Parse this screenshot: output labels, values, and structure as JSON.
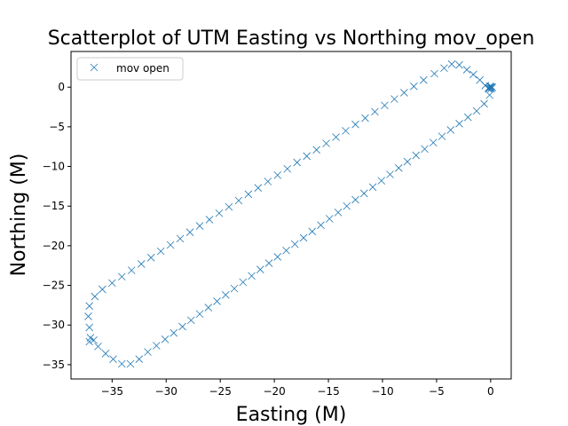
{
  "chart_data": {
    "type": "scatter",
    "title": "Scatterplot of UTM Easting vs Northing mov_open",
    "xlabel": "Easting (M)",
    "ylabel": "Northing (M)",
    "xlim": [
      -38.8,
      1.9
    ],
    "ylim": [
      -36.8,
      4.5
    ],
    "xticks": [
      -35,
      -30,
      -25,
      -20,
      -15,
      -10,
      -5,
      0
    ],
    "yticks": [
      -35,
      -30,
      -25,
      -20,
      -15,
      -10,
      -5,
      0
    ],
    "xtick_labels": [
      "−35",
      "−30",
      "−25",
      "−20",
      "−15",
      "−10",
      "−5",
      "0"
    ],
    "ytick_labels": [
      "−35",
      "−30",
      "−25",
      "−20",
      "−15",
      "−10",
      "−5",
      "0"
    ],
    "grid": false,
    "legend": {
      "position": "upper-left",
      "entries": [
        "mov open"
      ]
    },
    "marker": "x",
    "color": "#1f77b4",
    "series": [
      {
        "name": "mov open",
        "points": [
          [
            0,
            0
          ],
          [
            -0.1,
            -0.1
          ],
          [
            0.1,
            0.05
          ],
          [
            -0.05,
            0.1
          ],
          [
            0.05,
            -0.2
          ],
          [
            0.15,
            -0.05
          ],
          [
            -0.2,
            -0.1
          ],
          [
            -0.5,
            0.2
          ],
          [
            -1.0,
            0.9
          ],
          [
            -1.6,
            1.6
          ],
          [
            -2.2,
            2.2
          ],
          [
            -2.9,
            2.8
          ],
          [
            -3.6,
            2.9
          ],
          [
            -4.3,
            2.4
          ],
          [
            -5.2,
            1.7
          ],
          [
            -6.2,
            0.9
          ],
          [
            -7.1,
            0.1
          ],
          [
            -8.0,
            -0.7
          ],
          [
            -8.9,
            -1.5
          ],
          [
            -9.8,
            -2.3
          ],
          [
            -10.7,
            -3.1
          ],
          [
            -11.6,
            -3.9
          ],
          [
            -12.5,
            -4.7
          ],
          [
            -13.4,
            -5.5
          ],
          [
            -14.3,
            -6.3
          ],
          [
            -15.2,
            -7.1
          ],
          [
            -16.1,
            -7.9
          ],
          [
            -17.0,
            -8.7
          ],
          [
            -17.9,
            -9.5
          ],
          [
            -18.8,
            -10.3
          ],
          [
            -19.7,
            -11.1
          ],
          [
            -20.6,
            -11.9
          ],
          [
            -21.5,
            -12.7
          ],
          [
            -22.4,
            -13.5
          ],
          [
            -23.3,
            -14.3
          ],
          [
            -24.2,
            -15.1
          ],
          [
            -25.1,
            -15.9
          ],
          [
            -26.0,
            -16.7
          ],
          [
            -26.9,
            -17.5
          ],
          [
            -27.8,
            -18.3
          ],
          [
            -28.7,
            -19.1
          ],
          [
            -29.6,
            -19.9
          ],
          [
            -30.5,
            -20.7
          ],
          [
            -31.4,
            -21.5
          ],
          [
            -32.3,
            -22.3
          ],
          [
            -33.2,
            -23.1
          ],
          [
            -34.1,
            -23.9
          ],
          [
            -35.0,
            -24.7
          ],
          [
            -35.9,
            -25.5
          ],
          [
            -36.6,
            -26.4
          ],
          [
            -37.1,
            -27.6
          ],
          [
            -37.2,
            -28.9
          ],
          [
            -37.1,
            -30.3
          ],
          [
            -37.0,
            -31.6
          ],
          [
            -36.7,
            -31.9
          ],
          [
            -37.1,
            -32.1
          ],
          [
            -36.3,
            -32.7
          ],
          [
            -35.6,
            -33.6
          ],
          [
            -34.9,
            -34.3
          ],
          [
            -34.1,
            -34.9
          ],
          [
            -33.3,
            -34.9
          ],
          [
            -32.5,
            -34.3
          ],
          [
            -31.7,
            -33.4
          ],
          [
            -30.9,
            -32.6
          ],
          [
            -30.1,
            -31.8
          ],
          [
            -29.3,
            -31.0
          ],
          [
            -28.5,
            -30.2
          ],
          [
            -27.7,
            -29.4
          ],
          [
            -26.9,
            -28.6
          ],
          [
            -26.1,
            -27.8
          ],
          [
            -25.3,
            -27.0
          ],
          [
            -24.5,
            -26.2
          ],
          [
            -23.7,
            -25.4
          ],
          [
            -22.9,
            -24.6
          ],
          [
            -22.1,
            -23.8
          ],
          [
            -21.3,
            -23.0
          ],
          [
            -20.5,
            -22.2
          ],
          [
            -19.7,
            -21.4
          ],
          [
            -18.9,
            -20.6
          ],
          [
            -18.1,
            -19.8
          ],
          [
            -17.3,
            -19.0
          ],
          [
            -16.5,
            -18.2
          ],
          [
            -15.7,
            -17.4
          ],
          [
            -14.9,
            -16.6
          ],
          [
            -14.1,
            -15.8
          ],
          [
            -13.3,
            -15.0
          ],
          [
            -12.5,
            -14.2
          ],
          [
            -11.7,
            -13.4
          ],
          [
            -10.9,
            -12.6
          ],
          [
            -10.1,
            -11.8
          ],
          [
            -9.3,
            -11.0
          ],
          [
            -8.5,
            -10.2
          ],
          [
            -7.7,
            -9.4
          ],
          [
            -6.9,
            -8.6
          ],
          [
            -6.1,
            -7.8
          ],
          [
            -5.3,
            -7.0
          ],
          [
            -4.5,
            -6.2
          ],
          [
            -3.7,
            -5.4
          ],
          [
            -2.9,
            -4.6
          ],
          [
            -2.1,
            -3.8
          ],
          [
            -1.3,
            -3.0
          ],
          [
            -0.6,
            -2.1
          ],
          [
            -0.1,
            -1.0
          ],
          [
            -0.2,
            -0.2
          ]
        ]
      }
    ]
  }
}
